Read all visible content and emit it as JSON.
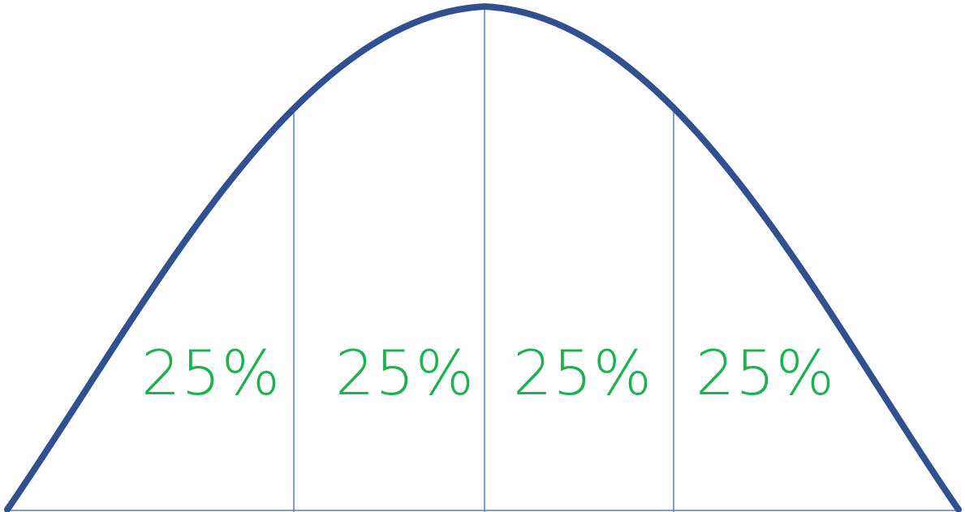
{
  "colors": {
    "curve": "#30508f",
    "divider": "#5a7fcf",
    "label": "#1db14f",
    "background": "#ffffff"
  },
  "diagram": {
    "shape": "bell-curve",
    "sections": [
      {
        "label": "25%"
      },
      {
        "label": "25%"
      },
      {
        "label": "25%"
      },
      {
        "label": "25%"
      }
    ]
  }
}
